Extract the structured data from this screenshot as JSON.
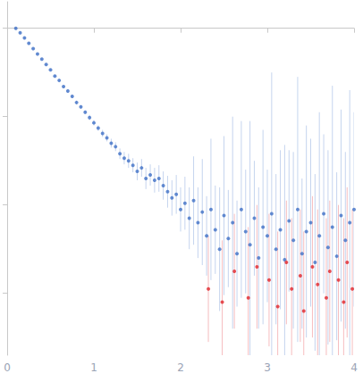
{
  "chart_data": {
    "type": "scatter",
    "marker": "circle",
    "grid": false,
    "tick_labels": "x",
    "xlim": [
      0,
      4
    ],
    "xticks": [
      0,
      1,
      2,
      3,
      4
    ],
    "ylim": [
      -3.7,
      0.3
    ],
    "yticks": [
      -3,
      -2,
      -1,
      0
    ],
    "series": [
      {
        "color": "#3f6fc6",
        "x": [
          0.1,
          0.15,
          0.2,
          0.25,
          0.3,
          0.35,
          0.4,
          0.45,
          0.5,
          0.55,
          0.6,
          0.65,
          0.7,
          0.75,
          0.8,
          0.85,
          0.9,
          0.95,
          1.0,
          1.05,
          1.1,
          1.15,
          1.2,
          1.25,
          1.3,
          1.35,
          1.4,
          1.45,
          1.5,
          1.55,
          1.6,
          1.65,
          1.7,
          1.75,
          1.8,
          1.85,
          1.9,
          1.95,
          2.0,
          2.05,
          2.1,
          2.15,
          2.2,
          2.25,
          2.3,
          2.35,
          2.4,
          2.45,
          2.5,
          2.55,
          2.6,
          2.65,
          2.7,
          2.75,
          2.8,
          2.85,
          2.9,
          2.95,
          3.0,
          3.05,
          3.1,
          3.15,
          3.2,
          3.25,
          3.3,
          3.35,
          3.4,
          3.45,
          3.5,
          3.55,
          3.6,
          3.65,
          3.7,
          3.75,
          3.8,
          3.85,
          3.9,
          3.95,
          4.0
        ],
        "values": [
          0.0,
          -0.05,
          -0.11,
          -0.17,
          -0.23,
          -0.29,
          -0.35,
          -0.41,
          -0.47,
          -0.54,
          -0.59,
          -0.66,
          -0.71,
          -0.77,
          -0.84,
          -0.89,
          -0.95,
          -1.01,
          -1.07,
          -1.13,
          -1.19,
          -1.24,
          -1.3,
          -1.34,
          -1.42,
          -1.47,
          -1.5,
          -1.55,
          -1.62,
          -1.58,
          -1.7,
          -1.66,
          -1.72,
          -1.7,
          -1.78,
          -1.85,
          -1.92,
          -1.88,
          -2.05,
          -1.98,
          -2.15,
          -1.95,
          -2.2,
          -2.08,
          -2.35,
          -2.05,
          -2.28,
          -2.5,
          -2.12,
          -2.38,
          -2.2,
          -2.55,
          -2.05,
          -2.3,
          -2.45,
          -2.15,
          -2.6,
          -2.25,
          -2.35,
          -2.1,
          -2.5,
          -2.28,
          -2.62,
          -2.18,
          -2.4,
          -2.05,
          -2.55,
          -2.3,
          -2.2,
          -2.65,
          -2.35,
          -2.1,
          -2.48,
          -2.25,
          -2.58,
          -2.12,
          -2.4,
          -2.2,
          -2.05
        ],
        "errors": [
          0.01,
          0.01,
          0.01,
          0.01,
          0.01,
          0.01,
          0.01,
          0.01,
          0.01,
          0.01,
          0.01,
          0.01,
          0.02,
          0.02,
          0.02,
          0.02,
          0.02,
          0.03,
          0.03,
          0.03,
          0.04,
          0.04,
          0.05,
          0.05,
          0.06,
          0.07,
          0.08,
          0.08,
          0.1,
          0.1,
          0.12,
          0.12,
          0.14,
          0.15,
          0.16,
          0.18,
          0.2,
          0.22,
          0.25,
          0.3,
          0.35,
          0.5,
          0.4,
          0.6,
          0.45,
          0.8,
          0.5,
          0.7,
          0.9,
          0.55,
          1.2,
          0.6,
          1.0,
          0.7,
          1.4,
          0.65,
          0.8,
          1.1,
          0.75,
          1.6,
          0.85,
          0.9,
          1.3,
          0.8,
          1.0,
          1.5,
          0.85,
          1.2,
          0.95,
          1.0,
          1.4,
          0.9,
          1.1,
          1.6,
          0.95,
          1.2,
          1.0,
          1.5,
          1.1
        ]
      },
      {
        "color": "#e0262c",
        "x": [
          2.32,
          2.48,
          2.62,
          2.78,
          2.88,
          3.02,
          3.12,
          3.22,
          3.28,
          3.38,
          3.42,
          3.52,
          3.58,
          3.68,
          3.72,
          3.82,
          3.88,
          3.92,
          3.98
        ],
        "values": [
          -2.95,
          -3.1,
          -2.75,
          -3.05,
          -2.7,
          -2.85,
          -3.15,
          -2.65,
          -2.95,
          -2.8,
          -3.2,
          -2.7,
          -2.9,
          -3.05,
          -2.75,
          -2.85,
          -3.1,
          -2.65,
          -2.95
        ],
        "errors": [
          0.6,
          0.7,
          0.65,
          0.8,
          0.7,
          0.75,
          0.85,
          0.7,
          0.8,
          0.75,
          0.9,
          0.8,
          0.85,
          0.9,
          0.8,
          0.85,
          0.95,
          0.85,
          0.9
        ]
      }
    ]
  }
}
